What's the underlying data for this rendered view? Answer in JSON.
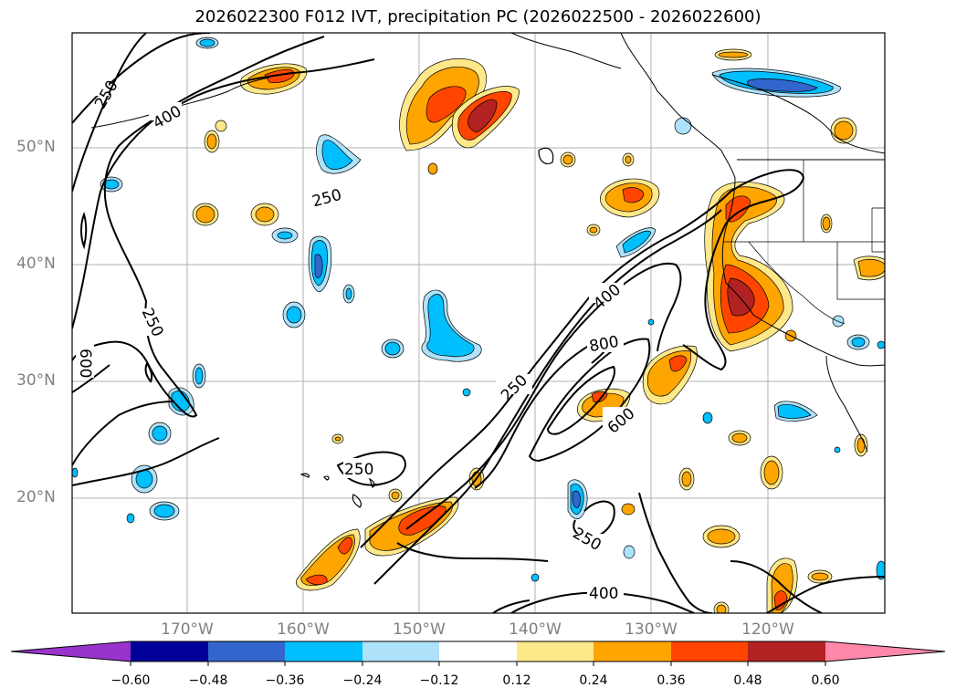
{
  "title": "2026022300 F012 IVT, precipitation PC (2026022500 - 2026022600)",
  "lat_labels": [
    "50°N",
    "40°N",
    "30°N",
    "20°N"
  ],
  "lon_labels": [
    "170°W",
    "160°W",
    "150°W",
    "140°W",
    "130°W",
    "120°W"
  ],
  "contour_labels": [
    "250",
    "400",
    "250",
    "250",
    "600",
    "400",
    "800",
    "250",
    "600",
    "250",
    "250",
    "400"
  ],
  "colorbar": {
    "ticks": [
      "−0.60",
      "−0.48",
      "−0.36",
      "−0.24",
      "−0.12",
      "0.12",
      "0.24",
      "0.36",
      "0.48",
      "0.60"
    ],
    "colors": [
      "#9933cc",
      "#000099",
      "#3366cc",
      "#00bfff",
      "#aee2fa",
      "#ffffff",
      "#ffe88a",
      "#ffa500",
      "#ff4500",
      "#b22222",
      "#ff88aa"
    ]
  }
}
